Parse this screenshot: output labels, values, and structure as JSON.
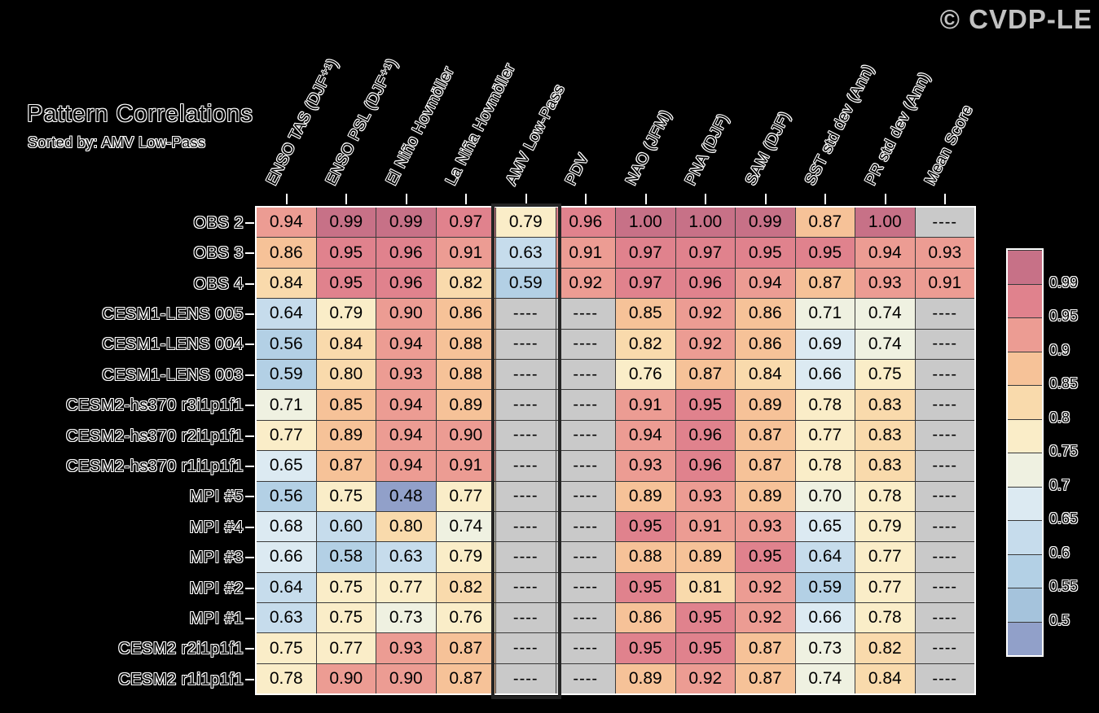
{
  "logo": {
    "text": "© CVDP-LE"
  },
  "chart_data": {
    "type": "heatmap",
    "title": "Pattern Correlations",
    "subtitle": "Sorted by: AMV Low-Pass",
    "sort_column": "AMV Low-Pass",
    "missing_token": "----",
    "columns": [
      "ENSO TAS (DJF⁺¹)",
      "ENSO PSL (DJF⁺¹)",
      "El Niño Hovmöller",
      "La Niña Hovmöller",
      "AMV Low-Pass",
      "PDV",
      "NAO (JFM)",
      "PNA (DJF)",
      "SAM (DJF)",
      "SST std dev (Ann)",
      "PR std dev (Ann)",
      "Mean Score"
    ],
    "rows": [
      {
        "label": "OBS 2",
        "values": [
          "0.94",
          "0.99",
          "0.99",
          "0.97",
          "0.79",
          "0.96",
          "1.00",
          "1.00",
          "0.99",
          "0.87",
          "1.00",
          "----"
        ]
      },
      {
        "label": "OBS 3",
        "values": [
          "0.86",
          "0.95",
          "0.96",
          "0.91",
          "0.63",
          "0.91",
          "0.97",
          "0.97",
          "0.95",
          "0.95",
          "0.94",
          "0.93"
        ]
      },
      {
        "label": "OBS 4",
        "values": [
          "0.84",
          "0.95",
          "0.96",
          "0.82",
          "0.59",
          "0.92",
          "0.97",
          "0.96",
          "0.94",
          "0.87",
          "0.93",
          "0.91"
        ]
      },
      {
        "label": "CESM1-LENS 005",
        "values": [
          "0.64",
          "0.79",
          "0.90",
          "0.86",
          "----",
          "----",
          "0.85",
          "0.92",
          "0.86",
          "0.71",
          "0.74",
          "----"
        ]
      },
      {
        "label": "CESM1-LENS 004",
        "values": [
          "0.56",
          "0.84",
          "0.94",
          "0.88",
          "----",
          "----",
          "0.82",
          "0.92",
          "0.86",
          "0.69",
          "0.74",
          "----"
        ]
      },
      {
        "label": "CESM1-LENS 003",
        "values": [
          "0.59",
          "0.80",
          "0.93",
          "0.88",
          "----",
          "----",
          "0.76",
          "0.87",
          "0.84",
          "0.66",
          "0.75",
          "----"
        ]
      },
      {
        "label": "CESM2-hs370 r3i1p1f1",
        "values": [
          "0.71",
          "0.85",
          "0.94",
          "0.89",
          "----",
          "----",
          "0.91",
          "0.95",
          "0.89",
          "0.78",
          "0.83",
          "----"
        ]
      },
      {
        "label": "CESM2-hs370 r2i1p1f1",
        "values": [
          "0.77",
          "0.89",
          "0.94",
          "0.90",
          "----",
          "----",
          "0.94",
          "0.96",
          "0.87",
          "0.77",
          "0.83",
          "----"
        ]
      },
      {
        "label": "CESM2-hs370 r1i1p1f1",
        "values": [
          "0.65",
          "0.87",
          "0.94",
          "0.91",
          "----",
          "----",
          "0.93",
          "0.96",
          "0.87",
          "0.78",
          "0.83",
          "----"
        ]
      },
      {
        "label": "MPI #5",
        "values": [
          "0.56",
          "0.75",
          "0.48",
          "0.77",
          "----",
          "----",
          "0.89",
          "0.93",
          "0.89",
          "0.70",
          "0.78",
          "----"
        ]
      },
      {
        "label": "MPI #4",
        "values": [
          "0.68",
          "0.60",
          "0.80",
          "0.74",
          "----",
          "----",
          "0.95",
          "0.91",
          "0.93",
          "0.65",
          "0.79",
          "----"
        ]
      },
      {
        "label": "MPI #3",
        "values": [
          "0.66",
          "0.58",
          "0.63",
          "0.79",
          "----",
          "----",
          "0.88",
          "0.89",
          "0.95",
          "0.64",
          "0.77",
          "----"
        ]
      },
      {
        "label": "MPI #2",
        "values": [
          "0.64",
          "0.75",
          "0.77",
          "0.82",
          "----",
          "----",
          "0.95",
          "0.81",
          "0.92",
          "0.59",
          "0.77",
          "----"
        ]
      },
      {
        "label": "MPI #1",
        "values": [
          "0.63",
          "0.75",
          "0.73",
          "0.76",
          "----",
          "----",
          "0.86",
          "0.95",
          "0.92",
          "0.66",
          "0.78",
          "----"
        ]
      },
      {
        "label": "CESM2 r2i1p1f1",
        "values": [
          "0.75",
          "0.77",
          "0.93",
          "0.87",
          "----",
          "----",
          "0.95",
          "0.95",
          "0.87",
          "0.73",
          "0.82",
          "----"
        ]
      },
      {
        "label": "CESM2 r1i1p1f1",
        "values": [
          "0.78",
          "0.90",
          "0.90",
          "0.87",
          "----",
          "----",
          "0.89",
          "0.92",
          "0.87",
          "0.74",
          "0.84",
          "----"
        ]
      }
    ],
    "colorbar": {
      "tick_labels": [
        "0.99",
        "0.95",
        "0.9",
        "0.85",
        "0.8",
        "0.75",
        "0.7",
        "0.65",
        "0.6",
        "0.55",
        "0.5"
      ],
      "legend_position": "right"
    }
  },
  "palette": {
    "missing_color": "#C9C9C9",
    "below_color": "#91A0C9",
    "bins": [
      {
        "min": 0.99,
        "color": "#C77187"
      },
      {
        "min": 0.95,
        "color": "#E0828D"
      },
      {
        "min": 0.9,
        "color": "#EC9C93"
      },
      {
        "min": 0.85,
        "color": "#F6C298"
      },
      {
        "min": 0.8,
        "color": "#F9DAAC"
      },
      {
        "min": 0.75,
        "color": "#FAEDC8"
      },
      {
        "min": 0.7,
        "color": "#EFF1E1"
      },
      {
        "min": 0.65,
        "color": "#DCEAF2"
      },
      {
        "min": 0.6,
        "color": "#C6DCEC"
      },
      {
        "min": 0.55,
        "color": "#B3D0E5"
      },
      {
        "min": 0.5,
        "color": "#A5C3DC"
      }
    ]
  }
}
